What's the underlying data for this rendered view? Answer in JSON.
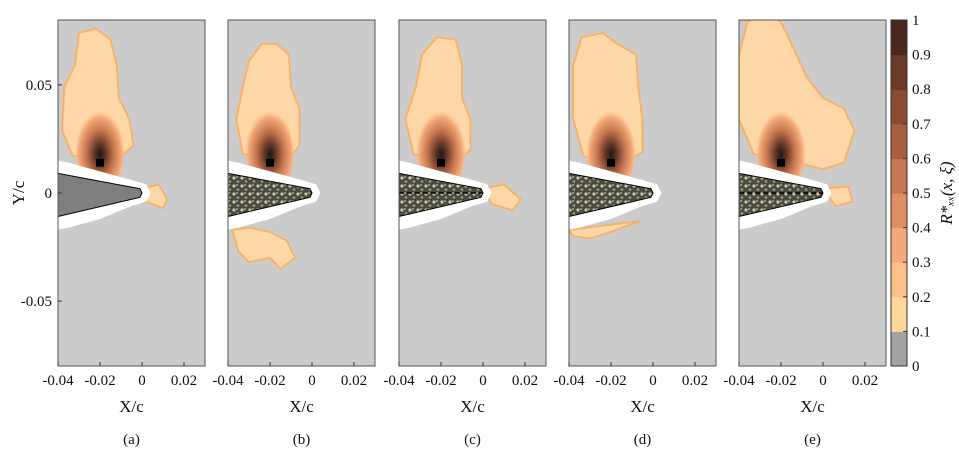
{
  "chart_data": {
    "type": "heatmap",
    "ylabel": "Y/c",
    "xlabel": "X/c",
    "xlim": [
      -0.04,
      0.03
    ],
    "ylim": [
      -0.08,
      0.08
    ],
    "x_ticks": [
      -0.04,
      -0.02,
      0,
      0.02
    ],
    "x_tick_labels": [
      "-0.04",
      "-0.02",
      "0",
      "0.02"
    ],
    "y_ticks": [
      0.05,
      0,
      -0.05
    ],
    "y_tick_labels": [
      "0.05",
      "0",
      "-0.05"
    ],
    "grid": false,
    "reference_point": {
      "x": -0.02,
      "y": 0.014
    },
    "colorbar": {
      "label": "R*ₓₓ(x, ξ)",
      "range": [
        0,
        1
      ],
      "ticks": [
        0,
        0.1,
        0.2,
        0.3,
        0.4,
        0.5,
        0.6,
        0.7,
        0.8,
        0.9,
        1
      ],
      "tick_labels": [
        "0",
        "0.1",
        "0.2",
        "0.3",
        "0.4",
        "0.5",
        "0.6",
        "0.7",
        "0.8",
        "0.9",
        "1"
      ],
      "colors": [
        "#a3a3a3",
        "#ffd79a",
        "#fcc08a",
        "#f5a97a",
        "#e08e62",
        "#c67650",
        "#a85f3e",
        "#8a4b31",
        "#6b3a27",
        "#4a281d",
        "#111111"
      ]
    },
    "panels": [
      {
        "caption": "(a)",
        "airfoil": "solid"
      },
      {
        "caption": "(b)",
        "airfoil": "porous"
      },
      {
        "caption": "(c)",
        "airfoil": "porous-dashed"
      },
      {
        "caption": "(d)",
        "airfoil": "porous"
      },
      {
        "caption": "(e)",
        "airfoil": "porous-dashed"
      }
    ]
  },
  "colors": {
    "background": "#cbcbcb",
    "contour_outer": "#fdd7a7",
    "contour_edge": "#f4b36c",
    "airfoil_solid": "#7f7f7f"
  }
}
